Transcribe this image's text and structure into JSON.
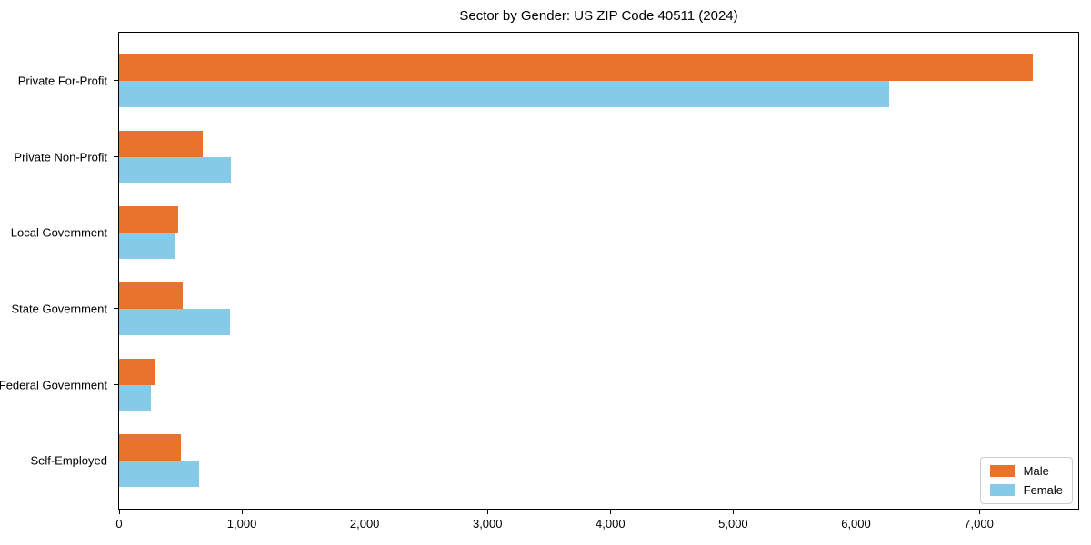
{
  "title": "Sector by Gender: US ZIP Code 40511 (2024)",
  "chart_data": {
    "type": "bar",
    "orientation": "horizontal",
    "title": "Sector by Gender: US ZIP Code 40511 (2024)",
    "categories": [
      "Private For-Profit",
      "Private Non-Profit",
      "Local Government",
      "State Government",
      "Federal Government",
      "Self-Employed"
    ],
    "series": [
      {
        "name": "Male",
        "color": "#e8732d",
        "values": [
          7440,
          680,
          480,
          520,
          290,
          505
        ]
      },
      {
        "name": "Female",
        "color": "#85cbe8",
        "values": [
          6270,
          910,
          460,
          905,
          260,
          650
        ]
      }
    ],
    "xlabel": "",
    "ylabel": "",
    "xlim": [
      0,
      7810
    ],
    "xticks": [
      0,
      1000,
      2000,
      3000,
      4000,
      5000,
      6000,
      7000
    ],
    "xtick_labels": [
      "0",
      "1,000",
      "2,000",
      "3,000",
      "4,000",
      "5,000",
      "6,000",
      "7,000"
    ],
    "grid": false,
    "legend_position": "lower right"
  }
}
